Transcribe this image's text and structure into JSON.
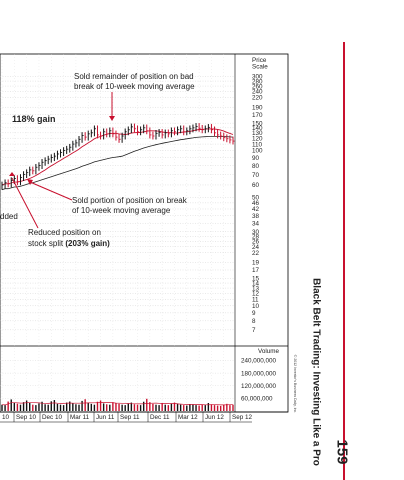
{
  "page": {
    "book_title": "Black Belt Trading: Investing Like a Pro",
    "page_number": "159",
    "copyright": "© 2012 Investor's Business Daily, Inc."
  },
  "chart_data": {
    "type": "candlestick",
    "price_axis": {
      "title_line1": "Price",
      "title_line2": "Scale",
      "scale": "log",
      "ticks": [
        300,
        280,
        260,
        240,
        220,
        190,
        170,
        150,
        140,
        130,
        120,
        110,
        100,
        90,
        80,
        70,
        60,
        50,
        46,
        42,
        38,
        34,
        30,
        28,
        26,
        24,
        22,
        19,
        17,
        15,
        14,
        13,
        12,
        11,
        10,
        9,
        8,
        7
      ],
      "range": [
        6.2,
        330
      ]
    },
    "volume_axis": {
      "title": "Volume",
      "ticks": [
        "240,000,000",
        "180,000,000",
        "120,000,000",
        "60,000,000"
      ],
      "tick_values": [
        240000000,
        180000000,
        120000000,
        60000000
      ],
      "range": [
        0,
        290000000
      ]
    },
    "date_labels": [
      "10",
      "Sep 10",
      "Dec 10",
      "Mar 11",
      "Jun 11",
      "Sep 11",
      "Dec 11",
      "Mar 12",
      "Jun 12",
      "Sep 12"
    ],
    "annotations": [
      {
        "id": "gain",
        "text": "118% gain"
      },
      {
        "id": "sold-remainder",
        "lines": [
          "Sold remainder of position on bad",
          "break of 10-week moving average"
        ]
      },
      {
        "id": "sold-portion",
        "lines": [
          "Sold portion of position on break",
          "of 10-week moving average"
        ]
      },
      {
        "id": "reduced",
        "lines": [
          "Reduced position on",
          "stock split "
        ],
        "bold_suffix": "(203% gain)"
      },
      {
        "id": "added",
        "text": "dded"
      }
    ],
    "weekly_prices": [
      60,
      62,
      61,
      64,
      66,
      63,
      67,
      70,
      72,
      75,
      74,
      78,
      80,
      84,
      86,
      88,
      90,
      92,
      95,
      97,
      100,
      102,
      105,
      110,
      112,
      118,
      125,
      122,
      128,
      130,
      138,
      126,
      124,
      132,
      128,
      134,
      128,
      122,
      118,
      124,
      132,
      136,
      142,
      138,
      132,
      136,
      140,
      134,
      126,
      124,
      129,
      131,
      126,
      130,
      128,
      134,
      132,
      136,
      138,
      132,
      134,
      138,
      140,
      143,
      139,
      136,
      138,
      141,
      136,
      130,
      126,
      124,
      121,
      119,
      117,
      115
    ],
    "weekly_volumes_millions": [
      30,
      28,
      45,
      55,
      40,
      35,
      30,
      42,
      50,
      38,
      30,
      28,
      36,
      44,
      32,
      30,
      46,
      52,
      34,
      30,
      28,
      40,
      45,
      36,
      32,
      30,
      48,
      56,
      40,
      34,
      30,
      44,
      50,
      36,
      32,
      30,
      42,
      38,
      34,
      30,
      28,
      36,
      40,
      32,
      30,
      28,
      44,
      58,
      42,
      34,
      30,
      28,
      36,
      30,
      28,
      34,
      40,
      36,
      30,
      28,
      26,
      32,
      30,
      28,
      26,
      30,
      28,
      38,
      32,
      28,
      26,
      24,
      30,
      34,
      28,
      30
    ]
  }
}
